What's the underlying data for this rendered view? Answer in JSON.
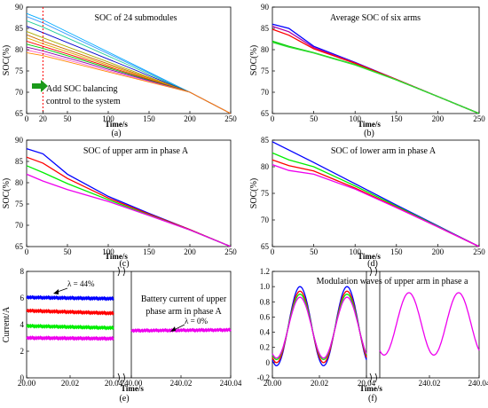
{
  "colors": {
    "blue": "#0000ff",
    "red": "#ff0000",
    "green": "#00ee00",
    "magenta": "#ee00ee",
    "marker_line": "#ff0000",
    "arrow": "#1a9a1a"
  },
  "chart_data": [
    {
      "type": "line",
      "subplot_label": "(a)",
      "title": "SOC of 24  submodules",
      "xlabel": "Time/s",
      "ylabel": "SOC(%)",
      "xlim": [
        0,
        250
      ],
      "ylim": [
        65,
        90
      ],
      "xticks": [
        0,
        20,
        50,
        100,
        150,
        200,
        250
      ],
      "yticks": [
        65,
        70,
        75,
        80,
        85,
        90
      ],
      "marker_x": 20,
      "annotation": "Add SOC balancing control to the system",
      "annotation_lines": [
        "Add SOC balancing",
        "control to the system"
      ],
      "series": [
        {
          "color": "#00aaff",
          "values": [
            [
              0,
              88.5
            ],
            [
              20,
              87.0
            ],
            [
              200,
              70.0
            ],
            [
              250,
              65.0
            ]
          ]
        },
        {
          "color": "#3399ff",
          "values": [
            [
              0,
              87.8
            ],
            [
              20,
              86.3
            ],
            [
              200,
              70.0
            ],
            [
              250,
              65.0
            ]
          ]
        },
        {
          "color": "#22cc99",
          "values": [
            [
              0,
              86.8
            ],
            [
              20,
              85.3
            ],
            [
              200,
              70.0
            ],
            [
              250,
              65.0
            ]
          ]
        },
        {
          "color": "#0000cc",
          "values": [
            [
              0,
              85.5
            ],
            [
              20,
              84.0
            ],
            [
              200,
              70.0
            ],
            [
              250,
              65.0
            ]
          ]
        },
        {
          "color": "#aaaa00",
          "values": [
            [
              0,
              84.3
            ],
            [
              20,
              82.8
            ],
            [
              200,
              70.0
            ],
            [
              250,
              65.0
            ]
          ]
        },
        {
          "color": "#cc6600",
          "values": [
            [
              0,
              83.5
            ],
            [
              20,
              82.0
            ],
            [
              200,
              70.0
            ],
            [
              250,
              65.0
            ]
          ]
        },
        {
          "color": "#ddaa00",
          "values": [
            [
              0,
              82.8
            ],
            [
              20,
              81.4
            ],
            [
              200,
              70.0
            ],
            [
              250,
              65.0
            ]
          ]
        },
        {
          "color": "#ff0000",
          "values": [
            [
              0,
              82.0
            ],
            [
              20,
              80.8
            ],
            [
              200,
              70.0
            ],
            [
              250,
              65.0
            ]
          ]
        },
        {
          "color": "#00cc00",
          "values": [
            [
              0,
              81.3
            ],
            [
              20,
              80.3
            ],
            [
              200,
              70.0
            ],
            [
              250,
              65.0
            ]
          ]
        },
        {
          "color": "#8800aa",
          "values": [
            [
              0,
              80.6
            ],
            [
              20,
              79.7
            ],
            [
              200,
              70.0
            ],
            [
              250,
              65.0
            ]
          ]
        },
        {
          "color": "#ff66cc",
          "values": [
            [
              0,
              79.9
            ],
            [
              20,
              79.1
            ],
            [
              200,
              70.0
            ],
            [
              250,
              65.0
            ]
          ]
        },
        {
          "color": "#ff8800",
          "values": [
            [
              0,
              79.3
            ],
            [
              20,
              78.6
            ],
            [
              200,
              70.0
            ],
            [
              250,
              65.0
            ]
          ]
        }
      ]
    },
    {
      "type": "line",
      "subplot_label": "(b)",
      "title": "Average SOC of six arms",
      "xlabel": "Time/s",
      "ylabel": "SOC(%)",
      "xlim": [
        0,
        250
      ],
      "ylim": [
        65,
        90
      ],
      "xticks": [
        0,
        50,
        100,
        150,
        200,
        250
      ],
      "yticks": [
        65,
        70,
        75,
        80,
        85,
        90
      ],
      "series": [
        {
          "color": "#0000ff",
          "values": [
            [
              0,
              86.0
            ],
            [
              20,
              85.0
            ],
            [
              50,
              80.8
            ],
            [
              100,
              77.0
            ],
            [
              150,
              73.0
            ],
            [
              200,
              69.0
            ],
            [
              250,
              65.0
            ]
          ]
        },
        {
          "color": "#aa00aa",
          "values": [
            [
              0,
              85.5
            ],
            [
              20,
              84.2
            ],
            [
              50,
              80.5
            ],
            [
              100,
              76.9
            ],
            [
              150,
              73.0
            ],
            [
              200,
              69.0
            ],
            [
              250,
              65.0
            ]
          ]
        },
        {
          "color": "#ff0000",
          "values": [
            [
              0,
              84.8
            ],
            [
              20,
              83.4
            ],
            [
              50,
              80.2
            ],
            [
              100,
              76.8
            ],
            [
              150,
              73.0
            ],
            [
              200,
              69.0
            ],
            [
              250,
              65.0
            ]
          ]
        },
        {
          "color": "#00cc00",
          "values": [
            [
              0,
              82.0
            ],
            [
              20,
              80.8
            ],
            [
              50,
              79.3
            ],
            [
              100,
              76.5
            ],
            [
              150,
              72.9
            ],
            [
              200,
              69.0
            ],
            [
              250,
              65.0
            ]
          ]
        },
        {
          "color": "#33dd33",
          "values": [
            [
              0,
              81.7
            ],
            [
              20,
              80.6
            ],
            [
              50,
              79.2
            ],
            [
              100,
              76.4
            ],
            [
              150,
              72.9
            ],
            [
              200,
              69.0
            ],
            [
              250,
              65.0
            ]
          ]
        }
      ]
    },
    {
      "type": "line",
      "subplot_label": "(c)",
      "title": "SOC of upper arm in phase A",
      "xlabel": "Time/s",
      "ylabel": "SOC(%)",
      "xlim": [
        0,
        250
      ],
      "ylim": [
        65,
        90
      ],
      "xticks": [
        0,
        50,
        100,
        150,
        200,
        250
      ],
      "yticks": [
        65,
        70,
        75,
        80,
        85,
        90
      ],
      "series": [
        {
          "color": "#0000ff",
          "values": [
            [
              0,
              88.0
            ],
            [
              20,
              86.8
            ],
            [
              50,
              82.0
            ],
            [
              100,
              76.8
            ],
            [
              150,
              72.8
            ],
            [
              200,
              69.0
            ],
            [
              250,
              65.0
            ]
          ]
        },
        {
          "color": "#ff0000",
          "values": [
            [
              0,
              86.0
            ],
            [
              20,
              84.6
            ],
            [
              50,
              81.0
            ],
            [
              100,
              76.4
            ],
            [
              150,
              72.6
            ],
            [
              200,
              69.0
            ],
            [
              250,
              65.0
            ]
          ]
        },
        {
          "color": "#00ee00",
          "values": [
            [
              0,
              84.0
            ],
            [
              20,
              82.4
            ],
            [
              50,
              79.8
            ],
            [
              100,
              76.0
            ],
            [
              150,
              72.4
            ],
            [
              200,
              68.9
            ],
            [
              250,
              65.0
            ]
          ]
        },
        {
          "color": "#ee00ee",
          "values": [
            [
              0,
              82.0
            ],
            [
              20,
              80.4
            ],
            [
              50,
              78.4
            ],
            [
              100,
              75.6
            ],
            [
              150,
              72.3
            ],
            [
              200,
              68.9
            ],
            [
              250,
              65.0
            ]
          ]
        }
      ]
    },
    {
      "type": "line",
      "subplot_label": "(d)",
      "title": "SOC of lower arm in phase A",
      "xlabel": "Time/s",
      "ylabel": "SOC(%)",
      "xlim": [
        0,
        250
      ],
      "ylim": [
        65,
        85
      ],
      "xticks": [
        0,
        50,
        100,
        150,
        200,
        250
      ],
      "yticks": [
        65,
        70,
        75,
        80,
        85
      ],
      "series": [
        {
          "color": "#0000ff",
          "values": [
            [
              0,
              84.7
            ],
            [
              50,
              80.8
            ],
            [
              100,
              76.8
            ],
            [
              150,
              72.8
            ],
            [
              200,
              68.9
            ],
            [
              250,
              65.0
            ]
          ]
        },
        {
          "color": "#00ee00",
          "values": [
            [
              0,
              82.6
            ],
            [
              20,
              81.3
            ],
            [
              50,
              80.0
            ],
            [
              100,
              76.4
            ],
            [
              150,
              72.6
            ],
            [
              200,
              68.8
            ],
            [
              250,
              65.0
            ]
          ]
        },
        {
          "color": "#ff0000",
          "values": [
            [
              0,
              81.3
            ],
            [
              20,
              80.2
            ],
            [
              50,
              79.2
            ],
            [
              100,
              76.0
            ],
            [
              150,
              72.4
            ],
            [
              200,
              68.7
            ],
            [
              250,
              65.0
            ]
          ]
        },
        {
          "color": "#ee00ee",
          "values": [
            [
              0,
              80.4
            ],
            [
              20,
              79.3
            ],
            [
              50,
              78.6
            ],
            [
              100,
              75.8
            ],
            [
              150,
              72.3
            ],
            [
              200,
              68.7
            ],
            [
              250,
              65.0
            ]
          ]
        }
      ]
    },
    {
      "type": "line",
      "subplot_label": "(e)",
      "title": "Battery current of upper phase arm in phase A",
      "title_lines": [
        "Battery current of upper",
        "phase arm in phase A"
      ],
      "xlabel": "Time/s",
      "ylabel": "Current/A",
      "ylim": [
        0,
        8
      ],
      "yticks": [
        0,
        2,
        4,
        6,
        8
      ],
      "segments": [
        {
          "xlim": [
            20.0,
            20.04
          ],
          "xticks": [
            20.0,
            20.02,
            20.04
          ],
          "xtick_labels": [
            "20.00",
            "20.02",
            "20.04"
          ]
        },
        {
          "xlim": [
            240.0,
            240.04
          ],
          "xticks": [
            240.0,
            240.02,
            240.04
          ],
          "xtick_labels": [
            "240.00",
            "240.02",
            "240.04"
          ]
        }
      ],
      "annotations": [
        "λ = 44%",
        "λ = 0%"
      ],
      "series": [
        {
          "color": "#0000ff",
          "segment": 0,
          "start": 6.05,
          "end": 5.95
        },
        {
          "color": "#ff0000",
          "segment": 0,
          "start": 5.05,
          "end": 4.85
        },
        {
          "color": "#00ee00",
          "segment": 0,
          "start": 3.9,
          "end": 3.75
        },
        {
          "color": "#ee00ee",
          "segment": 0,
          "start": 3.0,
          "end": 2.95
        },
        {
          "color": "#ee00ee",
          "segment": 1,
          "start": 3.55,
          "end": 3.6
        }
      ]
    },
    {
      "type": "line",
      "subplot_label": "(f)",
      "title": "Modulation waves of upper arm in phase a",
      "xlabel": "Time/s",
      "ylabel": "",
      "ylim": [
        -0.2,
        1.2
      ],
      "yticks": [
        -0.2,
        0,
        0.2,
        0.4,
        0.6,
        0.8,
        1.0,
        1.2
      ],
      "ytick_labels": [
        "-0.2",
        "0",
        "0.2",
        "0.4",
        "0.6",
        "0.8",
        "1.0",
        "1.2"
      ],
      "segments": [
        {
          "xlim": [
            20.0,
            20.04
          ],
          "xticks": [
            20.0,
            20.02,
            20.04
          ],
          "xtick_labels": [
            "20.00",
            "20.02",
            "20.04"
          ]
        },
        {
          "xlim": [
            240.0,
            240.04
          ],
          "xticks": [
            240.02,
            240.04
          ],
          "xtick_labels": [
            "240.02",
            "240.04"
          ]
        }
      ],
      "frequency_hz": 50,
      "series": [
        {
          "color": "#0000ff",
          "segment": 0,
          "mean": 0.48,
          "amplitude": 0.52
        },
        {
          "color": "#ff0000",
          "segment": 0,
          "mean": 0.47,
          "amplitude": 0.47
        },
        {
          "color": "#00ee00",
          "segment": 0,
          "mean": 0.47,
          "amplitude": 0.43
        },
        {
          "color": "#ee00ee",
          "segment": 0,
          "mean": 0.46,
          "amplitude": 0.4
        },
        {
          "color": "#ee00ee",
          "segment": 1,
          "mean": 0.51,
          "amplitude": 0.41
        }
      ]
    }
  ]
}
